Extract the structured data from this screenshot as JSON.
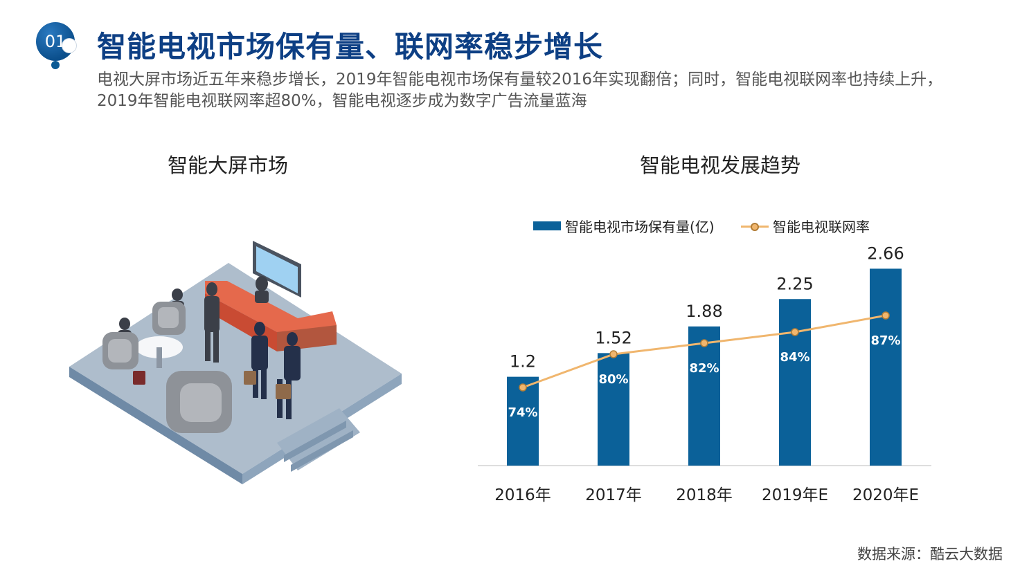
{
  "badge": {
    "number": "01"
  },
  "header": {
    "title": "智能电视市场保有量、联网率稳步增长",
    "subtitle": "电视大屏市场近五年来稳步增长，2019年智能电视市场保有量较2016年实现翻倍；同时，智能电视联网率也持续上升，2019年智能电视联网率超80%，智能电视逐步成为数字广告流量蓝海"
  },
  "left_panel": {
    "title": "智能大屏市场"
  },
  "right_panel": {
    "title": "智能电视发展趋势"
  },
  "chart_data": {
    "type": "bar",
    "categories": [
      "2016年",
      "2017年",
      "2018年",
      "2019年E",
      "2020年E"
    ],
    "series": [
      {
        "name": "智能电视市场保有量(亿)",
        "type": "bar",
        "values": [
          1.2,
          1.52,
          1.88,
          2.25,
          2.66
        ],
        "labels": [
          "1.2",
          "1.52",
          "1.88",
          "2.25",
          "2.66"
        ],
        "color": "#0b6199"
      },
      {
        "name": "智能电视联网率",
        "type": "line",
        "values": [
          74,
          80,
          82,
          84,
          87
        ],
        "labels": [
          "74%",
          "80%",
          "82%",
          "84%",
          "87%"
        ],
        "color": "#f0b66e"
      }
    ],
    "legend_position": "top",
    "grid": false
  },
  "footer": {
    "source": "数据来源：酷云大数据"
  }
}
